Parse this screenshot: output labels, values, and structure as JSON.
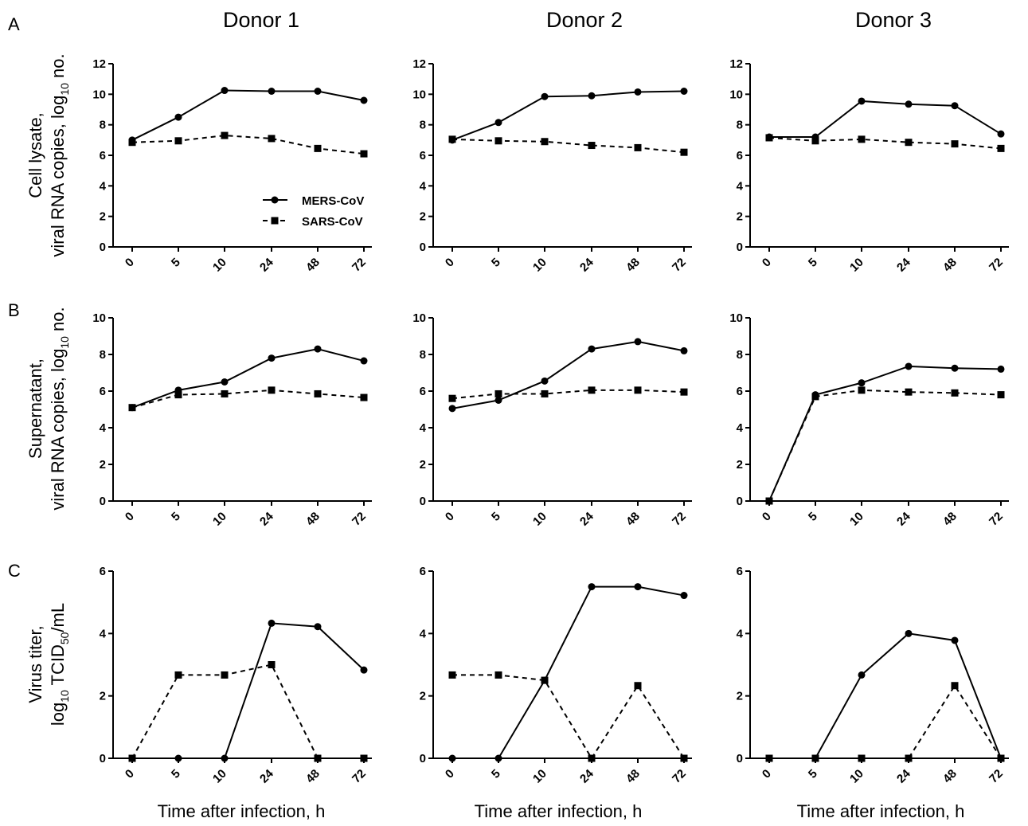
{
  "figure": {
    "column_titles": [
      "Donor 1",
      "Donor 2",
      "Donor 3"
    ],
    "row_labels": [
      "A",
      "B",
      "C"
    ],
    "x_axis_title": "Time after infection, h",
    "y_titles": [
      [
        "Cell lysate,",
        "viral RNA copies, log",
        "10",
        " no."
      ],
      [
        "Supernatant,",
        "viral RNA copies, log",
        "10",
        " no."
      ],
      [
        "Virus titer,",
        "log",
        "10",
        " TCID",
        "50",
        "/mL"
      ]
    ],
    "legend": [
      {
        "label": "MERS-CoV",
        "marker": "circle",
        "line": "solid"
      },
      {
        "label": "SARS-CoV",
        "marker": "square",
        "line": "dashed"
      }
    ],
    "line_color": "#000000"
  },
  "chart_data": [
    {
      "type": "line",
      "row": "A",
      "column": "Donor 1",
      "categories": [
        "0",
        "5",
        "10",
        "24",
        "48",
        "72"
      ],
      "ylim": [
        0,
        12
      ],
      "yticks": [
        0,
        2,
        4,
        6,
        8,
        10,
        12
      ],
      "series": [
        {
          "name": "MERS-CoV",
          "values": [
            7.0,
            8.5,
            10.25,
            10.2,
            10.2,
            9.6
          ]
        },
        {
          "name": "SARS-CoV",
          "values": [
            6.85,
            6.95,
            7.3,
            7.1,
            6.45,
            6.1
          ]
        }
      ]
    },
    {
      "type": "line",
      "row": "A",
      "column": "Donor 2",
      "categories": [
        "0",
        "5",
        "10",
        "24",
        "48",
        "72"
      ],
      "ylim": [
        0,
        12
      ],
      "yticks": [
        0,
        2,
        4,
        6,
        8,
        10,
        12
      ],
      "series": [
        {
          "name": "MERS-CoV",
          "values": [
            7.0,
            8.15,
            9.85,
            9.9,
            10.15,
            10.2
          ]
        },
        {
          "name": "SARS-CoV",
          "values": [
            7.05,
            6.95,
            6.9,
            6.65,
            6.5,
            6.2
          ]
        }
      ]
    },
    {
      "type": "line",
      "row": "A",
      "column": "Donor 3",
      "categories": [
        "0",
        "5",
        "10",
        "24",
        "48",
        "72"
      ],
      "ylim": [
        0,
        12
      ],
      "yticks": [
        0,
        2,
        4,
        6,
        8,
        10,
        12
      ],
      "series": [
        {
          "name": "MERS-CoV",
          "values": [
            7.2,
            7.2,
            9.55,
            9.35,
            9.25,
            7.4
          ]
        },
        {
          "name": "SARS-CoV",
          "values": [
            7.15,
            6.95,
            7.05,
            6.85,
            6.75,
            6.45
          ]
        }
      ]
    },
    {
      "type": "line",
      "row": "B",
      "column": "Donor 1",
      "categories": [
        "0",
        "5",
        "10",
        "24",
        "48",
        "72"
      ],
      "ylim": [
        0,
        10
      ],
      "yticks": [
        0,
        2,
        4,
        6,
        8,
        10
      ],
      "series": [
        {
          "name": "MERS-CoV",
          "values": [
            5.1,
            6.05,
            6.5,
            7.8,
            8.3,
            7.65
          ]
        },
        {
          "name": "SARS-CoV",
          "values": [
            5.1,
            5.8,
            5.85,
            6.05,
            5.85,
            5.65
          ]
        }
      ]
    },
    {
      "type": "line",
      "row": "B",
      "column": "Donor 2",
      "categories": [
        "0",
        "5",
        "10",
        "24",
        "48",
        "72"
      ],
      "ylim": [
        0,
        10
      ],
      "yticks": [
        0,
        2,
        4,
        6,
        8,
        10
      ],
      "series": [
        {
          "name": "MERS-CoV",
          "values": [
            5.05,
            5.5,
            6.55,
            8.3,
            8.7,
            8.2
          ]
        },
        {
          "name": "SARS-CoV",
          "values": [
            5.6,
            5.85,
            5.85,
            6.05,
            6.05,
            5.95
          ]
        }
      ]
    },
    {
      "type": "line",
      "row": "B",
      "column": "Donor 3",
      "categories": [
        "0",
        "5",
        "10",
        "24",
        "48",
        "72"
      ],
      "ylim": [
        0,
        10
      ],
      "yticks": [
        0,
        2,
        4,
        6,
        8,
        10
      ],
      "series": [
        {
          "name": "MERS-CoV",
          "values": [
            0,
            5.8,
            6.45,
            7.35,
            7.25,
            7.2
          ]
        },
        {
          "name": "SARS-CoV",
          "values": [
            0,
            5.7,
            6.05,
            5.95,
            5.9,
            5.8
          ]
        }
      ]
    },
    {
      "type": "line",
      "row": "C",
      "column": "Donor 1",
      "categories": [
        "0",
        "5",
        "10",
        "24",
        "48",
        "72"
      ],
      "ylim": [
        0,
        6
      ],
      "yticks": [
        0,
        2,
        4,
        6
      ],
      "series": [
        {
          "name": "MERS-CoV",
          "values": [
            0,
            0,
            0,
            4.33,
            4.22,
            2.83
          ]
        },
        {
          "name": "SARS-CoV",
          "values": [
            0,
            2.67,
            2.67,
            3.0,
            0,
            0
          ]
        }
      ]
    },
    {
      "type": "line",
      "row": "C",
      "column": "Donor 2",
      "categories": [
        "0",
        "5",
        "10",
        "24",
        "48",
        "72"
      ],
      "ylim": [
        0,
        6
      ],
      "yticks": [
        0,
        2,
        4,
        6
      ],
      "series": [
        {
          "name": "MERS-CoV",
          "values": [
            0,
            0,
            2.5,
            5.5,
            5.5,
            5.22
          ]
        },
        {
          "name": "SARS-CoV",
          "values": [
            2.67,
            2.67,
            2.5,
            0,
            2.33,
            0
          ]
        }
      ]
    },
    {
      "type": "line",
      "row": "C",
      "column": "Donor 3",
      "categories": [
        "0",
        "5",
        "10",
        "24",
        "48",
        "72"
      ],
      "ylim": [
        0,
        6
      ],
      "yticks": [
        0,
        2,
        4,
        6
      ],
      "series": [
        {
          "name": "MERS-CoV",
          "values": [
            0,
            0,
            2.67,
            4.0,
            3.78,
            0
          ]
        },
        {
          "name": "SARS-CoV",
          "values": [
            0,
            0,
            0,
            0,
            2.33,
            0
          ]
        }
      ]
    }
  ]
}
